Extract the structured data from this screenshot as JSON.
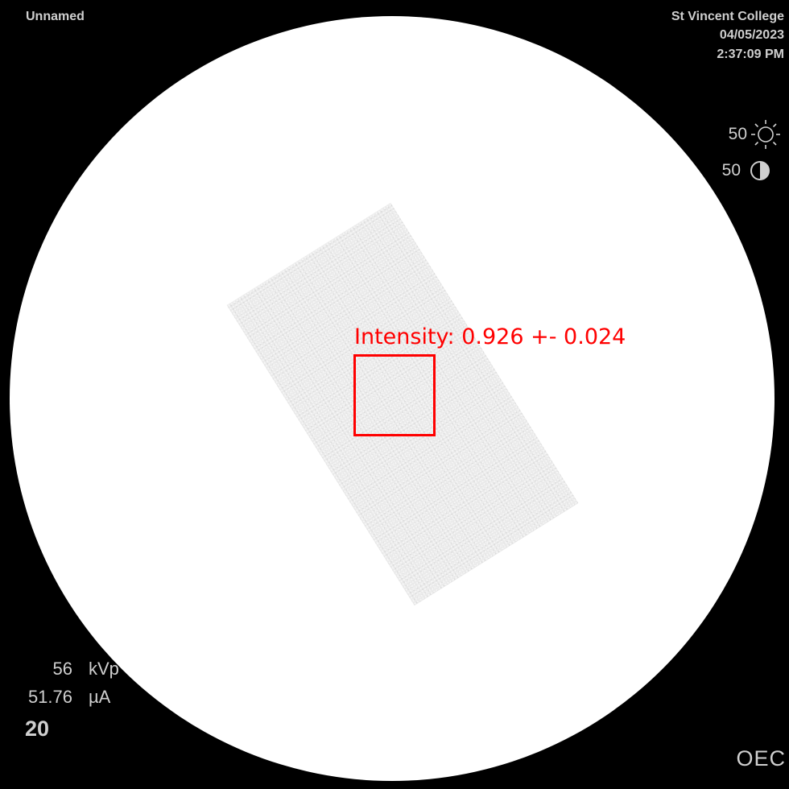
{
  "header": {
    "patient_name": "Unnamed",
    "institution": "St Vincent College",
    "date": "04/05/2023",
    "time": "2:37:09 PM"
  },
  "controls": {
    "brightness_value": "50",
    "brightness_icon": "sun-icon",
    "contrast_value": "50",
    "contrast_icon": "contrast-icon"
  },
  "exposure": {
    "kv_value": "56",
    "kv_unit": "kVp",
    "current_value": "51.76",
    "current_unit": "µA",
    "frame_number": "20"
  },
  "roi": {
    "label": "Intensity: 0.926 +- 0.024",
    "color": "#ff0000"
  },
  "brand": {
    "logo_text": "OEC"
  }
}
